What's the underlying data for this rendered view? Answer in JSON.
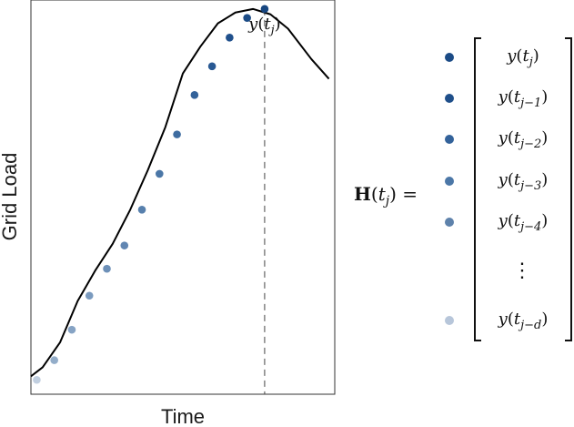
{
  "chart_data": {
    "type": "line",
    "xlabel": "Time",
    "ylabel": "Grid Load",
    "grid": false,
    "series": [
      {
        "values": [
          1.0,
          1.5,
          2.9,
          5.2,
          6.9,
          8.4,
          10.3,
          12.5,
          14.9,
          17.9,
          19.4,
          20.7,
          21.3,
          21.5,
          21.2,
          20.4,
          18.7,
          17.6
        ]
      }
    ],
    "x": [
      0.0,
      0.5,
      1.25,
      2.0,
      2.75,
      3.5,
      4.25,
      5.0,
      5.75,
      6.5,
      7.25,
      8.0,
      8.75,
      9.5,
      10.25,
      11.0,
      12.0,
      12.75
    ],
    "marked_points": {
      "x": [
        0.25,
        1.0,
        1.75,
        2.5,
        3.25,
        4.0,
        4.75,
        5.5,
        6.25,
        7.0,
        7.75,
        8.5,
        9.25,
        10.0
      ],
      "y": [
        0.8,
        1.9,
        3.6,
        5.5,
        7.0,
        8.3,
        10.3,
        12.3,
        14.5,
        16.7,
        18.3,
        19.9,
        21.0,
        21.5
      ],
      "colors": [
        "#c1cfe0",
        "#93adc9",
        "#86a3c4",
        "#7b9bbf",
        "#6d90b8",
        "#6186b2",
        "#5780ad",
        "#4b77a7",
        "#3e6ca0",
        "#33629a",
        "#295993",
        "#20508c",
        "#1b4b86",
        "#184781"
      ]
    },
    "marker_label": "y(t_j)",
    "marker_x": 10.0,
    "xlim": [
      0,
      13
    ],
    "ylim": [
      0,
      22
    ]
  },
  "equation": {
    "lhs": {
      "bold": "H",
      "open": "(",
      "var": "t",
      "sub": "j",
      "close": ")",
      "eq": "="
    },
    "entries": [
      {
        "y": "y",
        "var": "t",
        "sub": "j",
        "color": "#1b4b86"
      },
      {
        "y": "y",
        "var": "t",
        "sub": "j−1",
        "color": "#1f4f8a"
      },
      {
        "y": "y",
        "var": "t",
        "sub": "j−2",
        "color": "#33629a"
      },
      {
        "y": "y",
        "var": "t",
        "sub": "j−3",
        "color": "#4b77a7"
      },
      {
        "y": "y",
        "var": "t",
        "sub": "j−4",
        "color": "#5e82ab"
      },
      {
        "ellipsis": "⋮"
      },
      {
        "y": "y",
        "var": "t",
        "sub": "j−d",
        "color": "#b7c6da"
      }
    ]
  }
}
